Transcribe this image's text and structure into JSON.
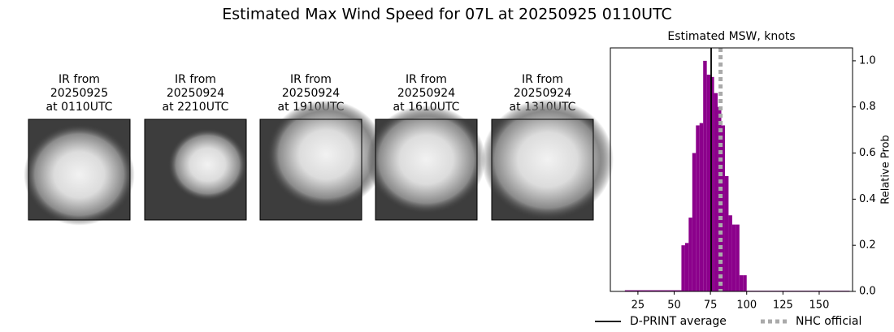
{
  "title": "Estimated Max Wind Speed for 07L at 20250925 0110UTC",
  "panels": [
    {
      "lines": [
        "IR from",
        "20250925",
        "at 0110UTC"
      ]
    },
    {
      "lines": [
        "IR from",
        "20250924",
        "at 2210UTC"
      ]
    },
    {
      "lines": [
        "IR from",
        "20250924",
        "at 1910UTC"
      ]
    },
    {
      "lines": [
        "IR from",
        "20250924",
        "at 1610UTC"
      ]
    },
    {
      "lines": [
        "IR from",
        "20250924",
        "at 1310UTC"
      ]
    }
  ],
  "chart_data": {
    "type": "histogram",
    "title": "Estimated MSW, knots",
    "ylabel": "Relative Prob",
    "bins": [
      16,
      55,
      57.5,
      60,
      62.5,
      65,
      67.5,
      70,
      72.5,
      75,
      77.5,
      80,
      82.5,
      85,
      87.5,
      90,
      92.5,
      95,
      97.5,
      100,
      171
    ],
    "values": [
      0.005,
      0.2,
      0.21,
      0.32,
      0.6,
      0.72,
      0.73,
      1.0,
      0.94,
      0.93,
      0.86,
      0.8,
      0.72,
      0.5,
      0.33,
      0.29,
      0.29,
      0.07,
      0.07,
      0.003
    ],
    "color": "#8b008b",
    "xlim": [
      6,
      173
    ],
    "ylim": [
      0,
      1.056
    ],
    "xticks": [
      25,
      50,
      75,
      100,
      125,
      150
    ],
    "yticks": [
      {
        "value": 0,
        "label": "0.0"
      },
      0.2,
      0.4,
      0.6,
      0.8,
      {
        "value": 1,
        "label": "1.0"
      }
    ],
    "lines": [
      {
        "name": "D-PRINT average",
        "value": 75.5,
        "color": "#000000",
        "style": "solid"
      },
      {
        "name": "NHC official",
        "value": 82,
        "color": "#aaaaaa",
        "style": "dotted"
      }
    ],
    "legend": "bottom"
  }
}
